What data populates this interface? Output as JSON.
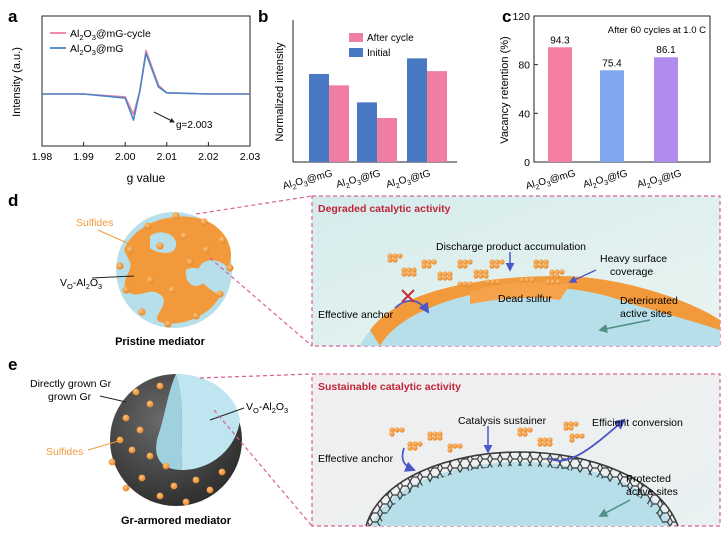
{
  "panel_labels": {
    "a": "a",
    "b": "b",
    "c": "c",
    "d": "d",
    "e": "e"
  },
  "chart_data": [
    {
      "panel": "a",
      "type": "line",
      "xlabel": "g value",
      "ylabel": "Intensity (a.u.)",
      "xlim": [
        1.98,
        2.03
      ],
      "x_ticks": [
        "1.98",
        "1.99",
        "2.00",
        "2.01",
        "2.02",
        "2.03"
      ],
      "legend": [
        "Al2O3@mG-cycle",
        "Al2O3@mG"
      ],
      "legend_colors": [
        "#e87ea5",
        "#4a86c6"
      ],
      "annotation": "g=2.003",
      "series": [
        {
          "name": "Al2O3@mG-cycle",
          "color": "#e87ea5",
          "x": [
            1.98,
            1.99,
            2.0,
            2.002,
            2.0035,
            2.005,
            2.008,
            2.01,
            2.02,
            2.03
          ],
          "y": [
            0,
            0,
            -0.05,
            -0.35,
            0.05,
            0.75,
            0.15,
            0.02,
            0,
            0
          ]
        },
        {
          "name": "Al2O3@mG",
          "color": "#4a86c6",
          "x": [
            1.98,
            1.99,
            2.0,
            2.002,
            2.0035,
            2.005,
            2.008,
            2.01,
            2.02,
            2.03
          ],
          "y": [
            0,
            0,
            -0.07,
            -0.45,
            0.05,
            0.7,
            0.12,
            0.02,
            0,
            0
          ]
        }
      ]
    },
    {
      "panel": "b",
      "type": "bar",
      "ylabel": "Normalized intensity",
      "categories": [
        "Al2O3@mG",
        "Al2O3@fG",
        "Al2O3@tG"
      ],
      "legend": [
        "After cycle",
        "Initial"
      ],
      "ylim": [
        0,
        1
      ],
      "series": [
        {
          "name": "Initial",
          "color": "#4a79c4",
          "values": [
            0.62,
            0.42,
            0.73
          ]
        },
        {
          "name": "After cycle",
          "color": "#f07ea3",
          "values": [
            0.54,
            0.31,
            0.64
          ]
        }
      ]
    },
    {
      "panel": "c",
      "type": "bar",
      "ylabel": "Vacancy retention (%)",
      "title": "After 60 cycles at 1.0 C",
      "categories": [
        "Al2O3@mG",
        "Al2O3@fG",
        "Al2O3@tG"
      ],
      "values": [
        94.3,
        75.4,
        86.1
      ],
      "value_labels": [
        "94.3",
        "75.4",
        "86.1"
      ],
      "colors": [
        "#f67ea3",
        "#7fa8f0",
        "#b08cee"
      ],
      "ylim": [
        0,
        120
      ],
      "y_ticks": [
        "0",
        "40",
        "80",
        "120"
      ]
    }
  ],
  "panel_d": {
    "sulfides_label": "Sulfides",
    "vo_label": "VO-Al2O3",
    "caption": "Pristine mediator",
    "title": "Degraded catalytic activity",
    "discharge": "Discharge product accumulation",
    "heavy1": "Heavy surface",
    "heavy2": "coverage",
    "anchor": "Effective anchor",
    "dead": "Dead sulfur",
    "det1": "Deteriorated",
    "det2": "active sites"
  },
  "panel_e": {
    "gr1": "Directly grown Gr",
    "vo_label": "VO-Al2O3",
    "sulfides_label": "Sulfides",
    "caption": "Gr-armored mediator",
    "title": "Sustainable catalytic activity",
    "sustainer": "Catalysis sustainer",
    "efficient": "Efficient conversion",
    "anchor": "Effective anchor",
    "prot1": "Protected",
    "prot2": "active sites"
  },
  "colors": {
    "title_red": "#c0243a",
    "sulfide_orange": "#f29a3b",
    "al2o3_blue": "#bfe6f0",
    "graphene": "#4a4a4a"
  }
}
